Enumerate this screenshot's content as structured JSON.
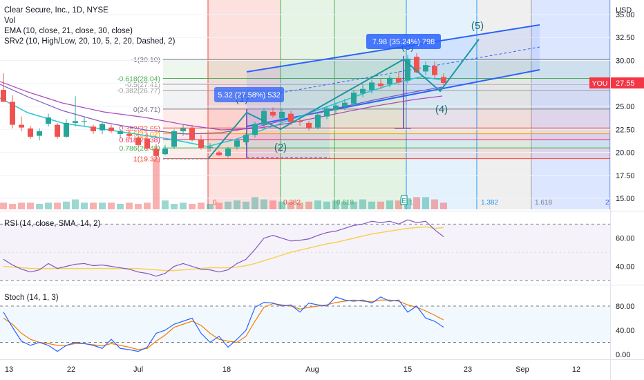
{
  "header": {
    "symbol_line": "Clear Secure, Inc., 1D, NYSE",
    "vol": "Vol",
    "ema": "EMA (10, close, 21, close, 30, close)",
    "srv2": "SRv2 (10, High/Low, 20, 10, 5, 2, 20, Dashed, 2)"
  },
  "currency": "USD",
  "price_axis": {
    "ticks": [
      "35.00",
      "32.50",
      "30.00",
      "27.50",
      "25.00",
      "22.50",
      "20.00",
      "17.50",
      "15.00"
    ],
    "current_badge": "27.55",
    "you_badge": "YOU"
  },
  "time_axis": {
    "ticks": [
      "13",
      "22",
      "Jul",
      "18",
      "Aug",
      "15",
      "23",
      "Sep",
      "12"
    ]
  },
  "fib_retracement": {
    "levels": [
      "-1(30.10)",
      "-0.618(28.04)",
      "-0.5(27.41)",
      "-0.382(26.77)",
      "0(24.71)",
      "0.382(22.65)",
      "0.5(22.02)",
      "0.618(21.38)",
      "0.786(20.48)",
      "1(19.32)"
    ]
  },
  "fib_time_labels": [
    "0",
    "0.382",
    "0.618",
    "1",
    "1.382",
    "1.618",
    "2"
  ],
  "measures": [
    {
      "text": "5.32 (27.58%) 532"
    },
    {
      "text": "7.98 (35.24%) 798"
    }
  ],
  "waves": [
    "(1)",
    "(2)",
    "(3)",
    "(4)",
    "(5)"
  ],
  "earnings_marker": "E",
  "rsi": {
    "label": "RSI (14, close, SMA, 14, 2)",
    "ticks": [
      "60.00",
      "40.00"
    ]
  },
  "stoch": {
    "label": "Stoch (14, 1, 3)",
    "ticks": [
      "80.00",
      "40.00",
      "0.00"
    ]
  },
  "colors": {
    "up": "#26a69a",
    "down": "#ef5350",
    "ema_fast": "#26c6da",
    "ema_slow": "#7e57c2",
    "channel": "#2962ff",
    "rsi_line": "#7e57c2",
    "rsi_ma": "#f5d34f",
    "stoch_k": "#2962ff",
    "stoch_d": "#f57c00"
  },
  "chart_data": {
    "type": "candlestick",
    "price_ylim": [
      13.8,
      36.2
    ],
    "candles": [
      {
        "o": 26.8,
        "h": 28.6,
        "l": 25.6,
        "c": 25.5
      },
      {
        "o": 25.5,
        "h": 26.2,
        "l": 22.6,
        "c": 23.0
      },
      {
        "o": 23.0,
        "h": 23.9,
        "l": 22.3,
        "c": 22.7
      },
      {
        "o": 22.6,
        "h": 22.9,
        "l": 21.5,
        "c": 21.7
      },
      {
        "o": 21.8,
        "h": 22.6,
        "l": 21.3,
        "c": 22.3
      },
      {
        "o": 23.1,
        "h": 24.2,
        "l": 22.8,
        "c": 23.8
      },
      {
        "o": 23.0,
        "h": 23.2,
        "l": 21.5,
        "c": 21.7
      },
      {
        "o": 21.7,
        "h": 23.6,
        "l": 21.6,
        "c": 23.2
      },
      {
        "o": 23.2,
        "h": 26.1,
        "l": 22.8,
        "c": 23.4
      },
      {
        "o": 23.4,
        "h": 23.8,
        "l": 22.8,
        "c": 23.4
      },
      {
        "o": 22.8,
        "h": 23.0,
        "l": 22.0,
        "c": 22.3
      },
      {
        "o": 22.4,
        "h": 23.3,
        "l": 22.0,
        "c": 23.1
      },
      {
        "o": 22.7,
        "h": 23.0,
        "l": 22.1,
        "c": 22.3
      },
      {
        "o": 22.0,
        "h": 22.5,
        "l": 21.6,
        "c": 22.3
      },
      {
        "o": 22.0,
        "h": 22.4,
        "l": 21.4,
        "c": 21.8
      },
      {
        "o": 21.6,
        "h": 22.1,
        "l": 20.6,
        "c": 20.8
      },
      {
        "o": 21.5,
        "h": 22.1,
        "l": 20.2,
        "c": 20.4
      },
      {
        "o": 20.4,
        "h": 20.9,
        "l": 19.2,
        "c": 19.6
      },
      {
        "o": 19.8,
        "h": 20.8,
        "l": 19.7,
        "c": 20.4
      },
      {
        "o": 20.6,
        "h": 22.5,
        "l": 20.4,
        "c": 22.3
      },
      {
        "o": 22.3,
        "h": 23.0,
        "l": 21.8,
        "c": 22.6
      },
      {
        "o": 22.6,
        "h": 23.0,
        "l": 21.2,
        "c": 21.4
      },
      {
        "o": 21.4,
        "h": 21.9,
        "l": 20.3,
        "c": 20.5
      },
      {
        "o": 20.5,
        "h": 21.0,
        "l": 20.1,
        "c": 20.6
      },
      {
        "o": 20.0,
        "h": 20.2,
        "l": 19.6,
        "c": 19.7
      },
      {
        "o": 19.6,
        "h": 20.6,
        "l": 19.4,
        "c": 20.4
      },
      {
        "o": 20.6,
        "h": 21.5,
        "l": 20.3,
        "c": 21.3
      },
      {
        "o": 21.1,
        "h": 22.1,
        "l": 20.8,
        "c": 21.9
      },
      {
        "o": 21.9,
        "h": 23.3,
        "l": 21.6,
        "c": 23.1
      },
      {
        "o": 23.0,
        "h": 24.8,
        "l": 22.8,
        "c": 24.5
      },
      {
        "o": 24.4,
        "h": 24.9,
        "l": 23.8,
        "c": 24.0
      },
      {
        "o": 23.7,
        "h": 24.7,
        "l": 23.3,
        "c": 24.4
      },
      {
        "o": 24.2,
        "h": 24.5,
        "l": 23.0,
        "c": 23.3
      },
      {
        "o": 23.4,
        "h": 23.7,
        "l": 22.9,
        "c": 23.3
      },
      {
        "o": 23.2,
        "h": 23.4,
        "l": 22.4,
        "c": 22.6
      },
      {
        "o": 22.7,
        "h": 24.3,
        "l": 22.5,
        "c": 24.1
      },
      {
        "o": 23.9,
        "h": 25.0,
        "l": 23.6,
        "c": 24.8
      },
      {
        "o": 24.6,
        "h": 25.4,
        "l": 24.2,
        "c": 25.1
      },
      {
        "o": 25.0,
        "h": 25.8,
        "l": 24.6,
        "c": 25.4
      },
      {
        "o": 25.3,
        "h": 26.8,
        "l": 25.0,
        "c": 26.5
      },
      {
        "o": 26.4,
        "h": 27.4,
        "l": 26.0,
        "c": 26.9
      },
      {
        "o": 26.8,
        "h": 27.9,
        "l": 26.4,
        "c": 27.6
      },
      {
        "o": 27.5,
        "h": 28.0,
        "l": 26.9,
        "c": 27.2
      },
      {
        "o": 27.4,
        "h": 28.4,
        "l": 27.1,
        "c": 28.1
      },
      {
        "o": 28.1,
        "h": 28.8,
        "l": 27.4,
        "c": 27.6
      },
      {
        "o": 27.8,
        "h": 30.6,
        "l": 27.5,
        "c": 30.2
      },
      {
        "o": 30.4,
        "h": 30.8,
        "l": 28.6,
        "c": 28.7
      },
      {
        "o": 28.8,
        "h": 29.9,
        "l": 28.4,
        "c": 29.5
      },
      {
        "o": 29.4,
        "h": 29.9,
        "l": 28.0,
        "c": 28.4
      },
      {
        "o": 28.2,
        "h": 28.6,
        "l": 27.3,
        "c": 27.55
      }
    ],
    "volume": [
      0.3,
      0.25,
      0.3,
      0.3,
      0.25,
      0.3,
      0.3,
      0.35,
      0.45,
      0.3,
      0.3,
      0.3,
      0.3,
      0.25,
      0.3,
      0.25,
      0.3,
      2.3,
      0.4,
      0.25,
      0.3,
      0.25,
      0.3,
      0.25,
      0.3,
      0.35,
      0.4,
      0.35,
      0.55,
      0.45,
      0.4,
      0.35,
      0.35,
      0.3,
      0.35,
      0.4,
      0.35,
      0.4,
      0.35,
      0.35,
      0.45,
      0.35,
      0.35,
      0.4,
      0.4,
      0.5,
      0.55,
      0.55,
      0.45,
      0.3
    ],
    "rsi_range": [
      28,
      78
    ],
    "rsi": [
      45.0,
      41.0,
      38.0,
      36.0,
      37.5,
      42.0,
      38.5,
      40.0,
      41.5,
      42.0,
      40.5,
      41.0,
      40.0,
      39.0,
      38.0,
      36.0,
      35.0,
      33.0,
      35.0,
      40.0,
      42.0,
      40.0,
      38.0,
      37.5,
      36.0,
      37.5,
      42.0,
      45.0,
      52.0,
      60.0,
      62.0,
      60.0,
      58.0,
      58.5,
      59.5,
      62.0,
      64.0,
      65.0,
      67.0,
      69.0,
      70.0,
      72.0,
      71.0,
      72.0,
      70.0,
      73.0,
      71.0,
      72.0,
      66.0,
      61.0
    ],
    "rsi_ma": [
      40.0,
      39.5,
      39.0,
      38.5,
      38.5,
      38.5,
      38.5,
      38.5,
      38.5,
      38.5,
      38.5,
      38.5,
      38.5,
      38.5,
      38.5,
      38.5,
      38.0,
      37.5,
      37.0,
      37.0,
      37.5,
      38.0,
      38.5,
      39.0,
      39.0,
      39.0,
      39.5,
      40.5,
      42.0,
      44.0,
      46.0,
      48.0,
      50.0,
      51.5,
      53.0,
      54.5,
      56.0,
      57.0,
      58.5,
      60.0,
      61.5,
      63.0,
      64.0,
      65.0,
      66.0,
      67.0,
      67.5,
      68.0,
      67.0,
      67.5
    ],
    "stoch_range": [
      -8,
      112
    ],
    "stoch_k": [
      70,
      45,
      22,
      15,
      20,
      15,
      5,
      15,
      20,
      18,
      15,
      10,
      25,
      10,
      8,
      5,
      12,
      35,
      40,
      50,
      55,
      60,
      35,
      20,
      30,
      12,
      25,
      40,
      78,
      86,
      85,
      80,
      82,
      70,
      85,
      82,
      80,
      95,
      90,
      88,
      90,
      85,
      95,
      88,
      90,
      70,
      80,
      60,
      55,
      45
    ],
    "stoch_d": [
      60,
      50,
      35,
      25,
      20,
      18,
      15,
      15,
      18,
      18,
      16,
      14,
      18,
      15,
      12,
      8,
      10,
      22,
      32,
      45,
      50,
      55,
      48,
      35,
      25,
      22,
      20,
      30,
      55,
      78,
      84,
      82,
      80,
      75,
      78,
      80,
      82,
      86,
      88,
      90,
      88,
      87,
      90,
      90,
      88,
      82,
      78,
      72,
      65,
      57
    ]
  }
}
